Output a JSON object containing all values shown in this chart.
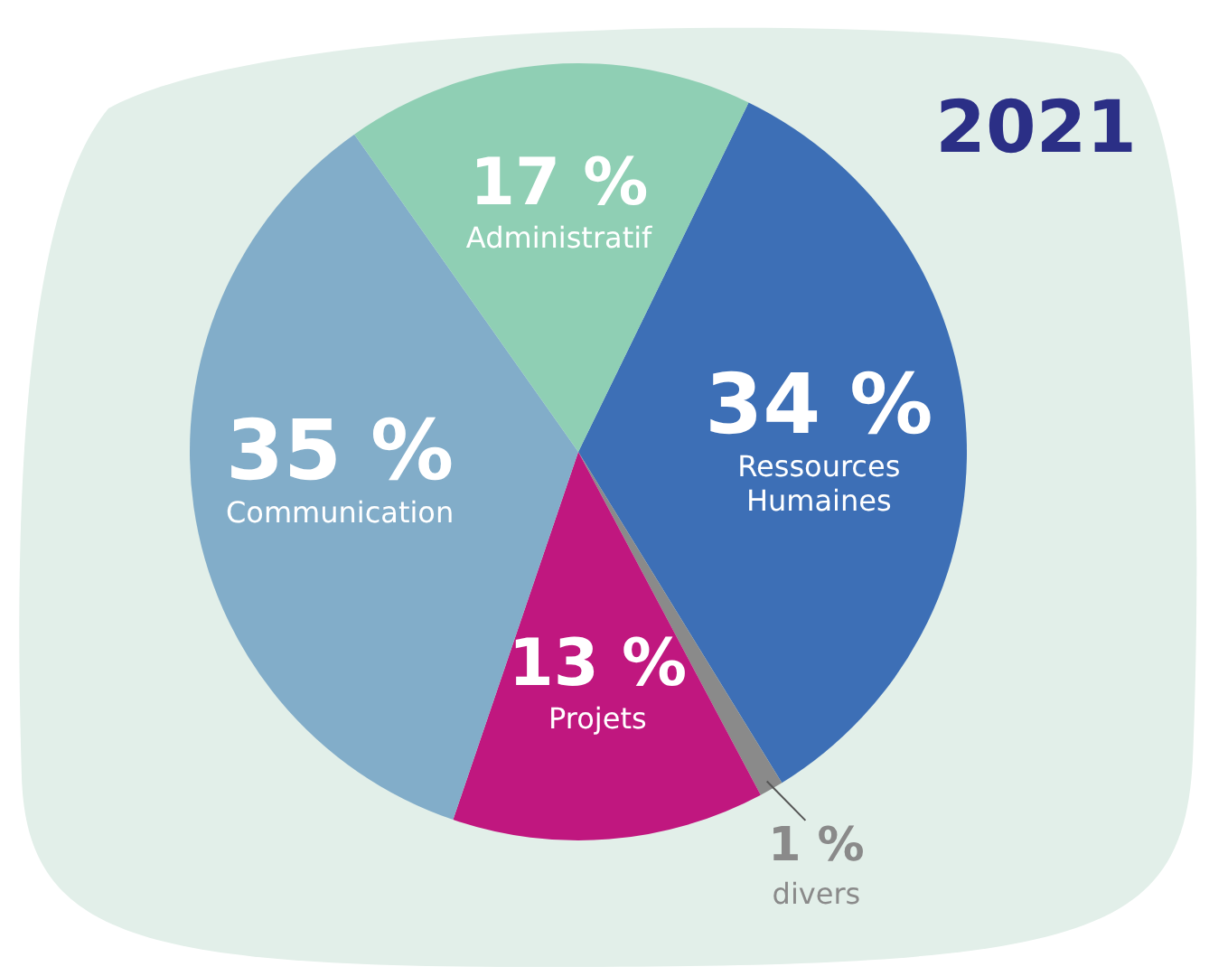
{
  "chart_data": {
    "type": "pie",
    "title": "2021",
    "categories": [
      "Ressources Humaines",
      "divers",
      "Projets",
      "Communication",
      "Administratif"
    ],
    "values": [
      34,
      1,
      13,
      35,
      17
    ],
    "colors": [
      "#3d6fb6",
      "#8a8a8a",
      "#c0177f",
      "#82adc9",
      "#8fcfb4"
    ],
    "value_labels": [
      "34 %",
      "1 %",
      "13 %",
      "35 %",
      "17 %"
    ]
  }
}
